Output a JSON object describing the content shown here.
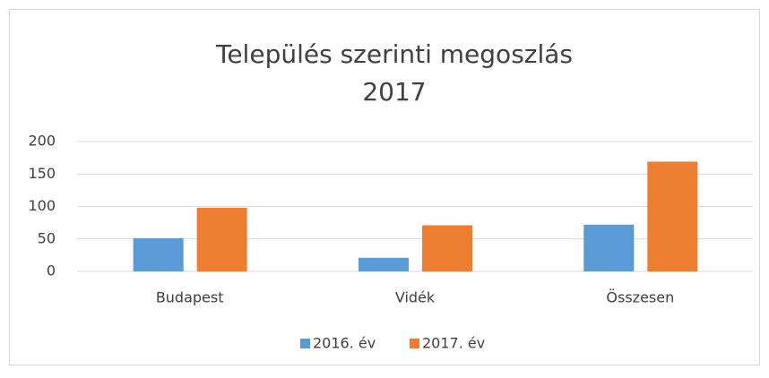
{
  "chart_data": {
    "type": "bar",
    "title": [
      "Település szerinti megoszlás",
      "2017"
    ],
    "categories": [
      "Budapest",
      "Vidék",
      "Összesen"
    ],
    "series": [
      {
        "name": "2016. év",
        "color": "#5b9bd5",
        "values": [
          51,
          21,
          72
        ]
      },
      {
        "name": "2017. év",
        "color": "#ed7d31",
        "values": [
          98,
          71,
          169
        ]
      }
    ],
    "ylim": [
      0,
      200
    ],
    "yticks": [
      0,
      50,
      100,
      150,
      200
    ],
    "grid": true,
    "legend": "bottom"
  }
}
